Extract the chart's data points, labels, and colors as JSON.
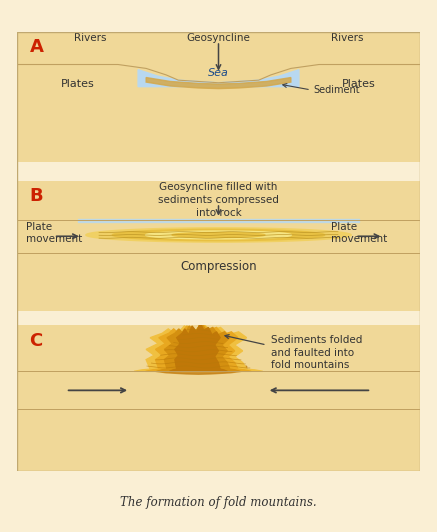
{
  "bg_color": "#faefd4",
  "panel_bg": "#f0d898",
  "panel_inner_bg": "#f5e8b0",
  "sea_color": "#b8d8f0",
  "sea_color2": "#90b8e0",
  "sediment_color": "#d4a84b",
  "plate_color": "#f0d060",
  "plate_color2": "#e8c040",
  "title": "The formation of fold mountains.",
  "panel_A_labels": {
    "letter": "A",
    "geosyncline": "Geosyncline",
    "rivers_left": "Rivers",
    "rivers_right": "Rivers",
    "plates_left": "Plates",
    "plates_right": "Plates",
    "sea": "Sea",
    "sediment": "Sediment"
  },
  "panel_B_labels": {
    "letter": "B",
    "top_text": "Geosyncline filled with\nsediments compressed\ninto rock",
    "plate_left": "Plate\nmovement",
    "plate_right": "Plate\nmovement",
    "compression": "Compression"
  },
  "panel_C_labels": {
    "letter": "C",
    "annotation": "Sediments folded\nand faulted into\nfold mountains"
  },
  "letter_color": "#cc2200",
  "text_color": "#333333",
  "arrow_color": "#444444",
  "mountain_colors": [
    "#f0c040",
    "#e8a820",
    "#d49010",
    "#c07808"
  ],
  "mountain_dark": "#c07808"
}
